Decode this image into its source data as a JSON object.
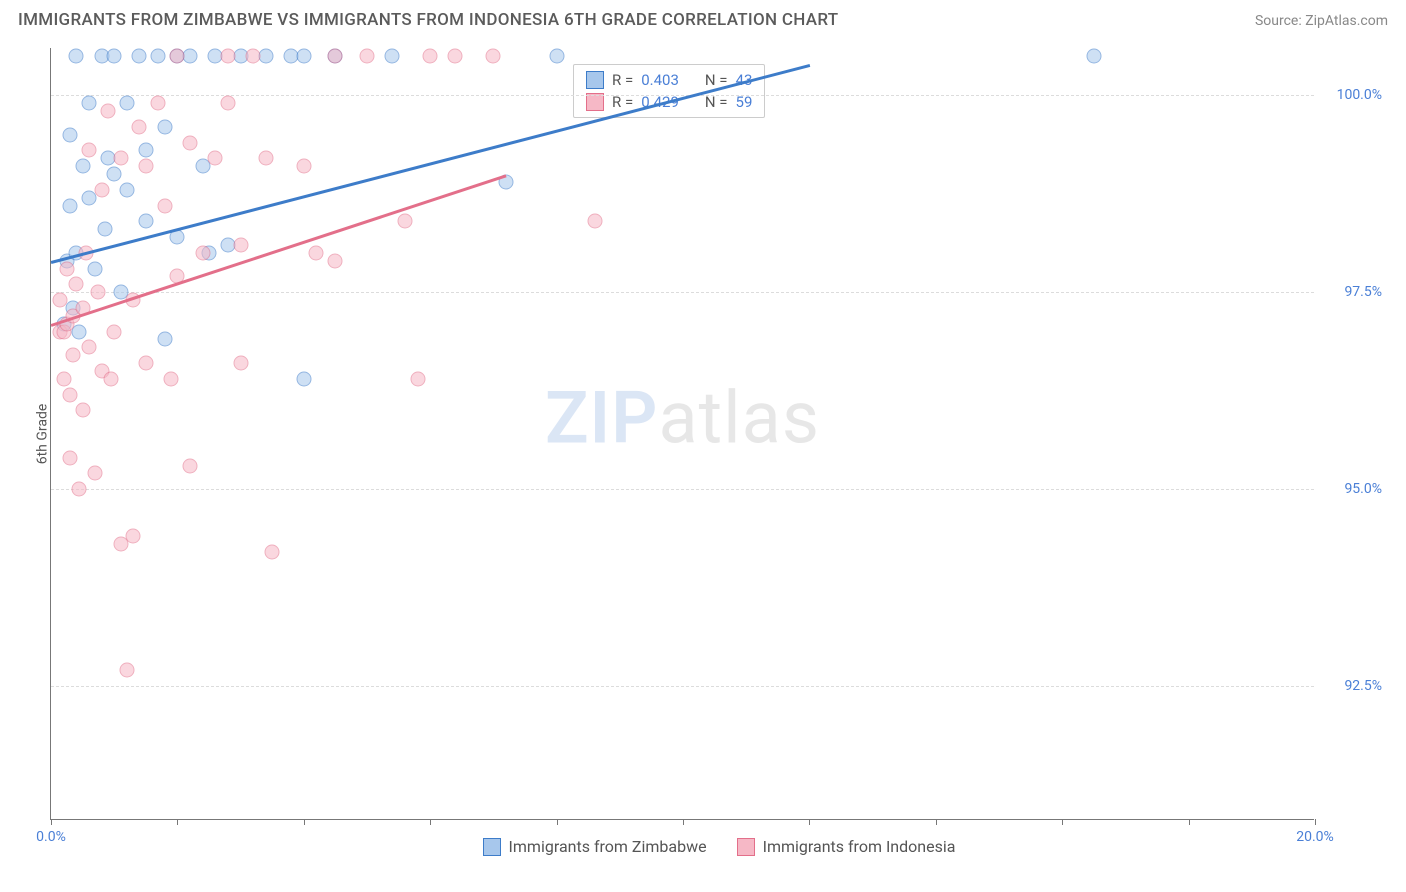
{
  "header": {
    "title": "IMMIGRANTS FROM ZIMBABWE VS IMMIGRANTS FROM INDONESIA 6TH GRADE CORRELATION CHART",
    "source": "Source: ZipAtlas.com"
  },
  "watermark": {
    "part1": "ZIP",
    "part2": "atlas"
  },
  "chart": {
    "type": "scatter",
    "y_axis_label": "6th Grade",
    "background_color": "#ffffff",
    "grid_color": "#dcdcdc",
    "axis_color": "#777777",
    "tick_label_color": "#4a7fd6",
    "text_color": "#555555",
    "title_fontsize": 17,
    "tick_fontsize": 14,
    "xlim": [
      0.0,
      20.0
    ],
    "ylim": [
      90.8,
      100.6
    ],
    "x_ticks": [
      0.0,
      2.0,
      4.0,
      6.0,
      8.0,
      10.0,
      12.0,
      14.0,
      16.0,
      18.0,
      20.0
    ],
    "x_tick_labels": {
      "0": "0.0%",
      "20": "20.0%"
    },
    "y_ticks": [
      92.5,
      95.0,
      97.5,
      100.0
    ],
    "y_tick_labels": [
      "92.5%",
      "95.0%",
      "97.5%",
      "100.0%"
    ],
    "marker_radius": 7.5,
    "marker_opacity": 0.55,
    "line_width": 2.5,
    "series": [
      {
        "name": "Immigrants from Zimbabwe",
        "color_fill": "#a7c7ec",
        "color_stroke": "#3d7cc9",
        "R": "0.403",
        "N": "43",
        "trend": {
          "x1": 0.0,
          "y1": 97.9,
          "x2": 12.0,
          "y2": 100.4
        },
        "points": [
          [
            0.2,
            97.1
          ],
          [
            0.25,
            97.9
          ],
          [
            0.3,
            98.6
          ],
          [
            0.3,
            99.5
          ],
          [
            0.35,
            97.3
          ],
          [
            0.4,
            98.0
          ],
          [
            0.4,
            100.5
          ],
          [
            0.45,
            97.0
          ],
          [
            0.5,
            99.1
          ],
          [
            0.6,
            98.7
          ],
          [
            0.6,
            99.9
          ],
          [
            0.7,
            97.8
          ],
          [
            0.8,
            100.5
          ],
          [
            0.85,
            98.3
          ],
          [
            0.9,
            99.2
          ],
          [
            1.0,
            99.0
          ],
          [
            1.0,
            100.5
          ],
          [
            1.1,
            97.5
          ],
          [
            1.2,
            98.8
          ],
          [
            1.2,
            99.9
          ],
          [
            1.4,
            100.5
          ],
          [
            1.5,
            98.4
          ],
          [
            1.5,
            99.3
          ],
          [
            1.7,
            100.5
          ],
          [
            1.8,
            96.9
          ],
          [
            1.8,
            99.6
          ],
          [
            2.0,
            98.2
          ],
          [
            2.0,
            100.5
          ],
          [
            2.2,
            100.5
          ],
          [
            2.4,
            99.1
          ],
          [
            2.5,
            98.0
          ],
          [
            2.6,
            100.5
          ],
          [
            2.8,
            98.1
          ],
          [
            3.0,
            100.5
          ],
          [
            3.4,
            100.5
          ],
          [
            3.8,
            100.5
          ],
          [
            4.0,
            96.4
          ],
          [
            4.0,
            100.5
          ],
          [
            4.5,
            100.5
          ],
          [
            5.4,
            100.5
          ],
          [
            7.2,
            98.9
          ],
          [
            8.0,
            100.5
          ],
          [
            16.5,
            100.5
          ]
        ]
      },
      {
        "name": "Immigrants from Indonesia",
        "color_fill": "#f6b8c6",
        "color_stroke": "#e36f8a",
        "R": "0.429",
        "N": "59",
        "trend": {
          "x1": 0.0,
          "y1": 97.1,
          "x2": 7.2,
          "y2": 99.0
        },
        "points": [
          [
            0.15,
            97.0
          ],
          [
            0.15,
            97.4
          ],
          [
            0.2,
            96.4
          ],
          [
            0.2,
            97.0
          ],
          [
            0.25,
            97.1
          ],
          [
            0.25,
            97.8
          ],
          [
            0.3,
            95.4
          ],
          [
            0.3,
            96.2
          ],
          [
            0.35,
            96.7
          ],
          [
            0.35,
            97.2
          ],
          [
            0.4,
            97.6
          ],
          [
            0.45,
            95.0
          ],
          [
            0.5,
            96.0
          ],
          [
            0.5,
            97.3
          ],
          [
            0.55,
            98.0
          ],
          [
            0.6,
            96.8
          ],
          [
            0.6,
            99.3
          ],
          [
            0.7,
            95.2
          ],
          [
            0.75,
            97.5
          ],
          [
            0.8,
            96.5
          ],
          [
            0.8,
            98.8
          ],
          [
            0.9,
            99.8
          ],
          [
            0.95,
            96.4
          ],
          [
            1.0,
            97.0
          ],
          [
            1.1,
            94.3
          ],
          [
            1.1,
            99.2
          ],
          [
            1.2,
            92.7
          ],
          [
            1.3,
            94.4
          ],
          [
            1.3,
            97.4
          ],
          [
            1.4,
            99.6
          ],
          [
            1.5,
            96.6
          ],
          [
            1.5,
            99.1
          ],
          [
            1.7,
            99.9
          ],
          [
            1.8,
            98.6
          ],
          [
            1.9,
            96.4
          ],
          [
            2.0,
            97.7
          ],
          [
            2.0,
            100.5
          ],
          [
            2.2,
            95.3
          ],
          [
            2.2,
            99.4
          ],
          [
            2.4,
            98.0
          ],
          [
            2.6,
            99.2
          ],
          [
            2.8,
            99.9
          ],
          [
            2.8,
            100.5
          ],
          [
            3.0,
            96.6
          ],
          [
            3.0,
            98.1
          ],
          [
            3.2,
            100.5
          ],
          [
            3.4,
            99.2
          ],
          [
            3.5,
            94.2
          ],
          [
            4.0,
            99.1
          ],
          [
            4.2,
            98.0
          ],
          [
            4.5,
            97.9
          ],
          [
            4.5,
            100.5
          ],
          [
            5.0,
            100.5
          ],
          [
            5.6,
            98.4
          ],
          [
            5.8,
            96.4
          ],
          [
            6.0,
            100.5
          ],
          [
            6.4,
            100.5
          ],
          [
            7.0,
            100.5
          ],
          [
            8.6,
            98.4
          ]
        ]
      }
    ],
    "legend_r_prefix": "R = ",
    "legend_n_prefix": "N = "
  }
}
